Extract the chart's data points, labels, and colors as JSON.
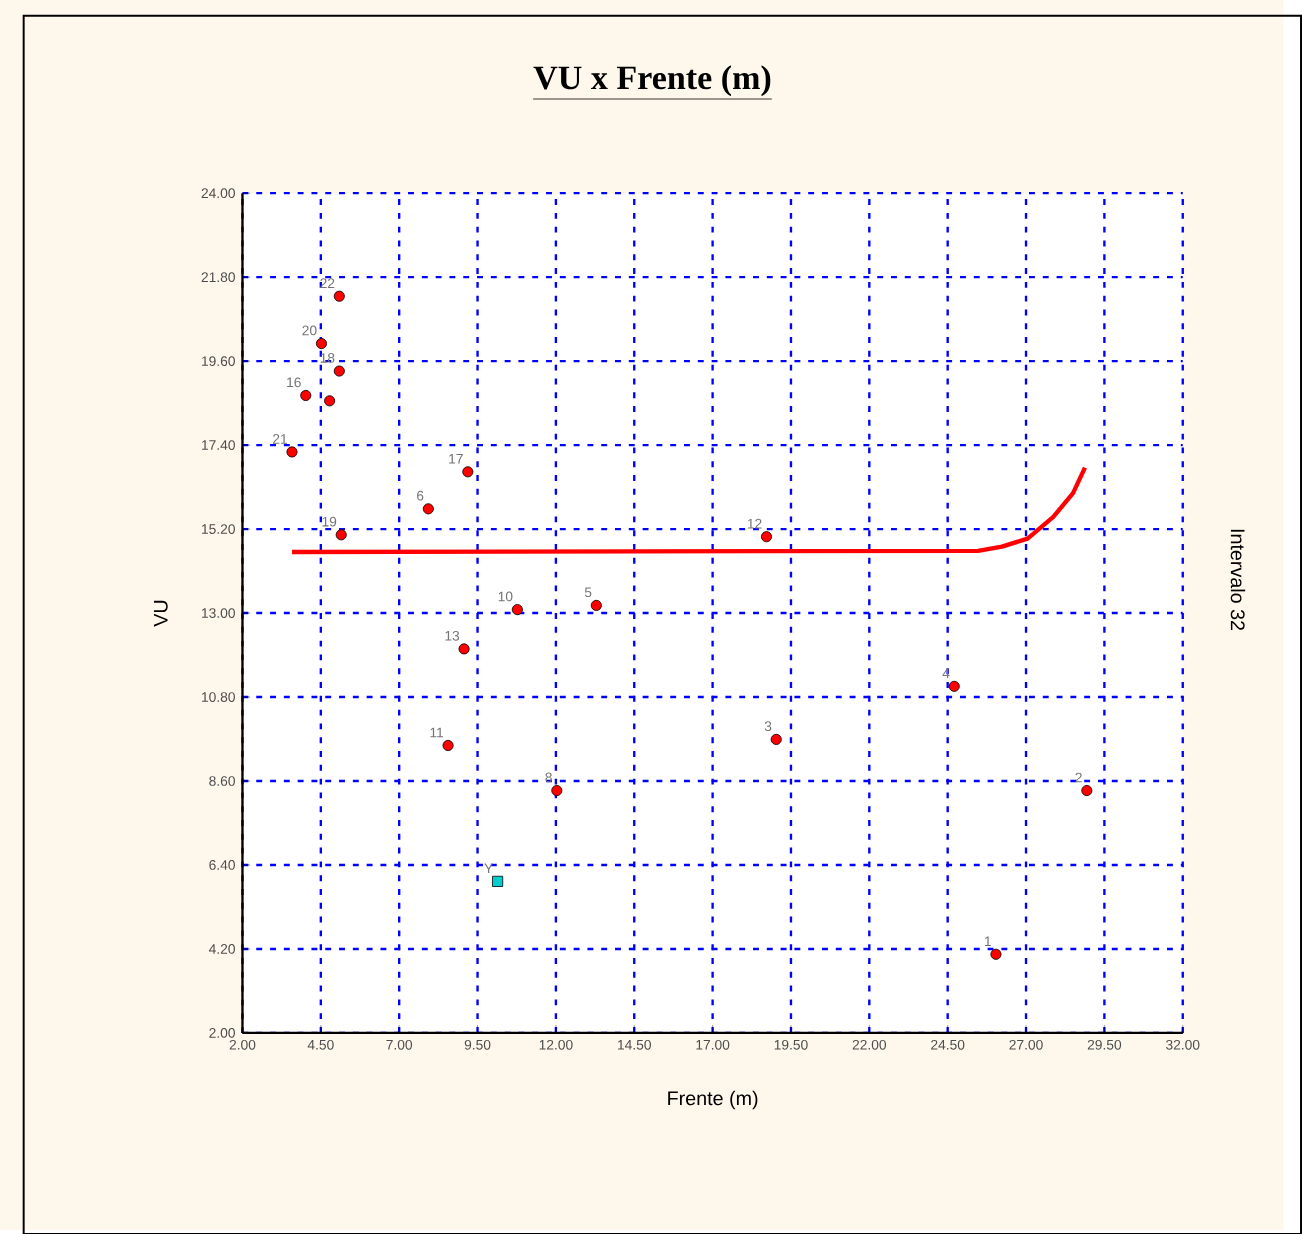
{
  "chart_data": {
    "type": "scatter",
    "title": "VU x Frente (m)",
    "xlabel": "Frente (m)",
    "ylabel": "VU",
    "xlim": [
      2,
      32
    ],
    "ylim": [
      2,
      24
    ],
    "xticks": [
      {
        "value": 2,
        "label": "2.00"
      },
      {
        "value": 4.5,
        "label": "4.50"
      },
      {
        "value": 7,
        "label": "7.00"
      },
      {
        "value": 9.5,
        "label": "9.50"
      },
      {
        "value": 12,
        "label": "12.00"
      },
      {
        "value": 14.5,
        "label": "14.50"
      },
      {
        "value": 17,
        "label": "17.00"
      },
      {
        "value": 19.5,
        "label": "19.50"
      },
      {
        "value": 22,
        "label": "22.00"
      },
      {
        "value": 24.5,
        "label": "24.50"
      },
      {
        "value": 27,
        "label": "27.00"
      },
      {
        "value": 29.5,
        "label": "29.50"
      },
      {
        "value": 32,
        "label": "32.00"
      }
    ],
    "yticks": [
      {
        "value": 2,
        "label": "2.00"
      },
      {
        "value": 4.2,
        "label": "4.20"
      },
      {
        "value": 6.4,
        "label": "6.40"
      },
      {
        "value": 8.6,
        "label": "8.60"
      },
      {
        "value": 10.8,
        "label": "10.80"
      },
      {
        "value": 13,
        "label": "13.00"
      },
      {
        "value": 15.2,
        "label": "15.20"
      },
      {
        "value": 17.4,
        "label": "17.40"
      },
      {
        "value": 19.6,
        "label": "19.60"
      },
      {
        "value": 21.8,
        "label": "21.80"
      },
      {
        "value": 24,
        "label": "24.00"
      }
    ],
    "grid": true,
    "series": [
      {
        "marker": "circle",
        "color": "#ff0000",
        "x": [
          5.09,
          4.52,
          5.09,
          4.02,
          4.78,
          3.58,
          9.19,
          7.93,
          5.15,
          18.72,
          10.77,
          13.29,
          9.07,
          8.56,
          12.03,
          24.71,
          19.03,
          28.94,
          26.04
        ],
        "values": [
          21.3,
          20.06,
          19.34,
          18.7,
          18.56,
          17.22,
          16.7,
          15.73,
          15.05,
          15.0,
          13.09,
          13.2,
          12.06,
          9.53,
          8.35,
          11.08,
          9.69,
          8.35,
          4.06
        ]
      },
      {
        "type": "line",
        "marker": "none",
        "color": "#ff0000",
        "x": [
          3.58,
          25.47,
          26.23,
          27.05,
          27.87,
          28.5,
          28.88
        ],
        "values": [
          14.6,
          14.63,
          14.74,
          14.95,
          15.52,
          16.14,
          16.81
        ]
      },
      {
        "marker": "square",
        "color": "#00cccc",
        "x": [
          10.14
        ],
        "values": [
          5.97
        ]
      }
    ],
    "annotations": [
      {
        "text": "22",
        "x": 5.09,
        "y": 21.3
      },
      {
        "text": "20",
        "x": 4.52,
        "y": 20.06
      },
      {
        "text": "18",
        "x": 5.09,
        "y": 19.34
      },
      {
        "text": "16",
        "x": 4.02,
        "y": 18.7
      },
      {
        "text": "21",
        "x": 3.58,
        "y": 17.22
      },
      {
        "text": "17",
        "x": 9.19,
        "y": 16.7
      },
      {
        "text": "6",
        "x": 7.93,
        "y": 15.73
      },
      {
        "text": "19",
        "x": 5.15,
        "y": 15.05
      },
      {
        "text": "12",
        "x": 18.72,
        "y": 15.0
      },
      {
        "text": "10",
        "x": 10.77,
        "y": 13.09
      },
      {
        "text": "5",
        "x": 13.29,
        "y": 13.2
      },
      {
        "text": "13",
        "x": 9.07,
        "y": 12.06
      },
      {
        "text": "11",
        "x": 8.56,
        "y": 9.53
      },
      {
        "text": "8",
        "x": 12.03,
        "y": 8.35
      },
      {
        "text": "4",
        "x": 24.71,
        "y": 11.08
      },
      {
        "text": "3",
        "x": 19.03,
        "y": 9.69
      },
      {
        "text": "2",
        "x": 28.94,
        "y": 8.35
      },
      {
        "text": "1",
        "x": 26.04,
        "y": 4.06
      },
      {
        "text": "Y",
        "x": 10.14,
        "y": 5.97
      },
      "Intervalo 32"
    ]
  }
}
